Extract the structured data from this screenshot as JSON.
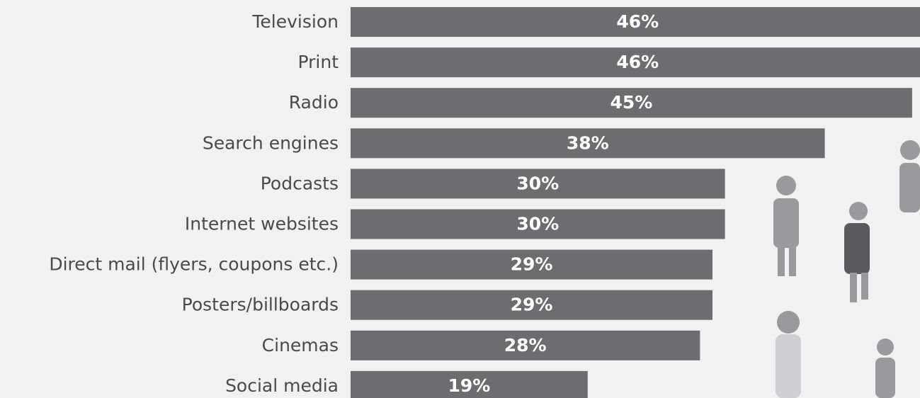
{
  "chart_data": {
    "type": "bar",
    "orientation": "horizontal",
    "categories": [
      "Television",
      "Print",
      "Radio",
      "Search engines",
      "Podcasts",
      "Internet websites",
      "Direct mail (flyers, coupons etc.)",
      "Posters/billboards",
      "Cinemas",
      "Social media"
    ],
    "values": [
      46,
      46,
      45,
      38,
      30,
      30,
      29,
      29,
      28,
      19
    ],
    "value_labels": [
      "46%",
      "46%",
      "45%",
      "38%",
      "30%",
      "30%",
      "29%",
      "29%",
      "28%",
      "19%"
    ],
    "color": "#6d6d6f"
  }
}
